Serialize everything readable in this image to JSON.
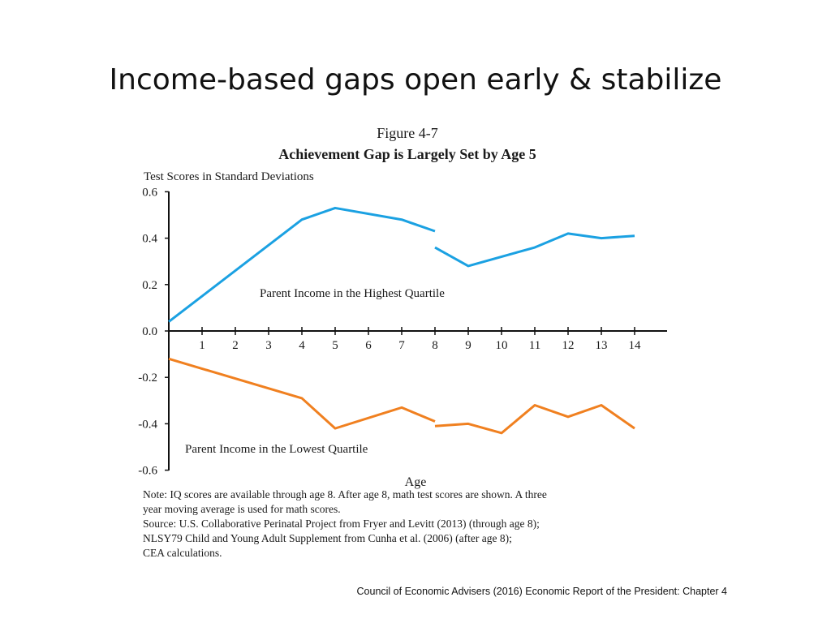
{
  "slide": {
    "title": "Income-based gaps open early & stabilize",
    "citation": "Council of Economic Advisers (2016) Economic Report of the President: Chapter 4"
  },
  "figure": {
    "label": "Figure 4-7",
    "title": "Achievement Gap is Largely Set by Age 5",
    "notes": [
      "Note: IQ scores are available through age 8. After age 8, math test scores are shown. A three",
      "year moving average is used for math scores.",
      "Source: U.S. Collaborative Perinatal Project from Fryer and Levitt (2013) (through age 8);",
      "NLSY79 Child and Young Adult Supplement from Cunha et al. (2006) (after age 8);",
      "CEA calculations."
    ]
  },
  "chart_data": {
    "type": "line",
    "ylabel": "Test Scores in Standard Deviations",
    "xlabel": "Age",
    "ylim": [
      -0.6,
      0.6
    ],
    "xlim": [
      0,
      15
    ],
    "x_ticks": [
      1,
      2,
      3,
      4,
      5,
      6,
      7,
      8,
      9,
      10,
      11,
      12,
      13,
      14
    ],
    "x_tick_labels": [
      "1",
      "2",
      "3",
      "4",
      "5",
      "6",
      "7",
      "8",
      "9",
      "10",
      "11",
      "12",
      "13",
      "14"
    ],
    "y_ticks": [
      0.6,
      0.4,
      0.2,
      0.0,
      -0.2,
      -0.4,
      -0.6
    ],
    "y_tick_labels": [
      "0.6",
      "0.4",
      "0.2",
      "0.0",
      "-0.2",
      "-0.4",
      "-0.6"
    ],
    "colors": {
      "high": "#1ba1e2",
      "low": "#f08020"
    },
    "series": [
      {
        "name": "Parent Income in the Highest Quartile",
        "color_key": "high",
        "segments": [
          {
            "x": [
              0,
              4,
              5,
              7,
              8
            ],
            "y": [
              0.04,
              0.48,
              0.53,
              0.48,
              0.43
            ]
          },
          {
            "x": [
              8,
              9,
              11,
              12,
              13,
              14
            ],
            "y": [
              0.36,
              0.28,
              0.36,
              0.42,
              0.4,
              0.41
            ]
          }
        ]
      },
      {
        "name": "Parent Income in the Lowest Quartile",
        "color_key": "low",
        "segments": [
          {
            "x": [
              0,
              4,
              5,
              7,
              8
            ],
            "y": [
              -0.12,
              -0.29,
              -0.42,
              -0.33,
              -0.39
            ]
          },
          {
            "x": [
              8,
              9,
              10,
              11,
              12,
              13,
              14
            ],
            "y": [
              -0.41,
              -0.4,
              -0.44,
              -0.32,
              -0.37,
              -0.32,
              -0.42
            ]
          }
        ]
      }
    ]
  }
}
